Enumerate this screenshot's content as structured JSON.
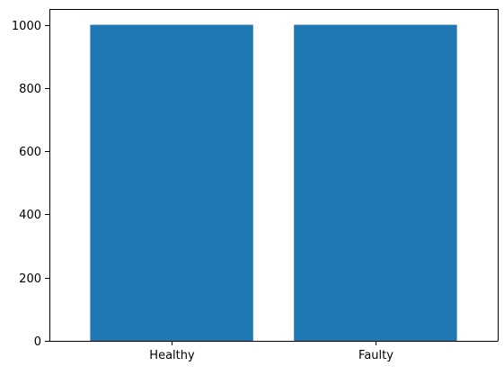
{
  "chart_data": {
    "type": "bar",
    "categories": [
      "Healthy",
      "Faulty"
    ],
    "values": [
      1000,
      1000
    ],
    "title": "",
    "xlabel": "",
    "ylabel": "",
    "ylim": [
      0,
      1050
    ],
    "yticks": [
      0,
      200,
      400,
      600,
      800,
      1000
    ],
    "grid": false,
    "colors": {
      "bar": "#1f77b4",
      "axis": "#000000",
      "background": "#ffffff"
    }
  }
}
